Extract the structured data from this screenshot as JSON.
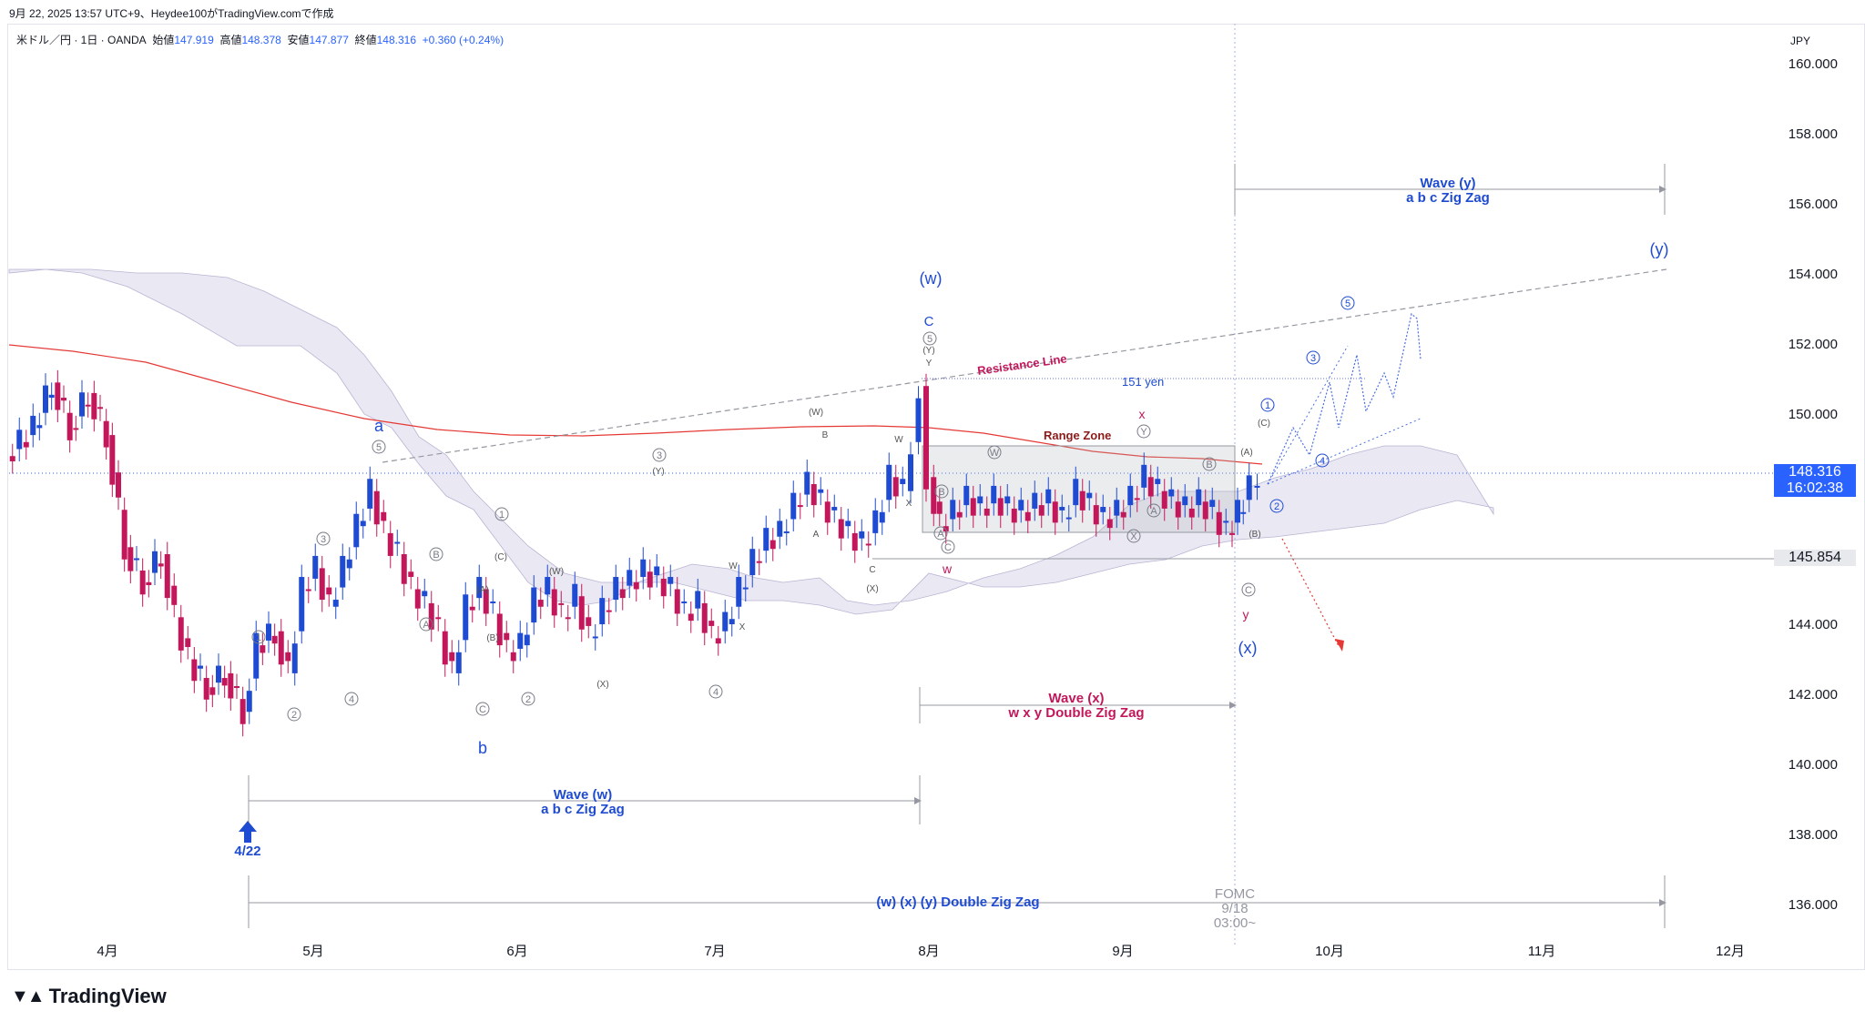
{
  "header": {
    "timestamp": "9月 22, 2025 13:57 UTC+9、Heydee100がTradingView.comで作成"
  },
  "legend": {
    "symbol": "米ドル／円 · 1日 · OANDA",
    "open_label": "始値",
    "open": "147.919",
    "high_label": "高値",
    "high": "148.378",
    "low_label": "安値",
    "low": "147.877",
    "close_label": "終値",
    "close": "148.316",
    "change": "+0.360 (+0.24%)"
  },
  "currency": "JPY",
  "colors": {
    "up": "#1e4bd2",
    "down": "#c2185b",
    "accent": "#2962ff"
  },
  "price_axis": [
    "160.000",
    "158.000",
    "156.000",
    "154.000",
    "152.000",
    "150.000",
    "148.000",
    "146.000",
    "144.000",
    "142.000",
    "140.000",
    "138.000",
    "136.000"
  ],
  "price_tags": {
    "last": "148.316",
    "countdown": "16:02:38",
    "level": "145.854"
  },
  "time_axis": [
    "4月",
    "5月",
    "6月",
    "7月",
    "8月",
    "9月",
    "10月",
    "11月",
    "12月"
  ],
  "annotations": {
    "wave_w_title": "Wave (w)",
    "wave_w_sub": "a b c  Zig Zag",
    "wave_x_title": "Wave (x)",
    "wave_x_sub": "w x y Double Zig Zag",
    "wave_y_title": "Wave (y)",
    "wave_y_sub": "a b c  Zig Zag",
    "overall": "(w) (x) (y) Double Zig Zag",
    "date_422": "4/22",
    "fomc": "FOMC",
    "fomc_date": "9/18",
    "fomc_time": "03:00~",
    "resistance": "Resistance Line",
    "range_zone": "Range Zone",
    "yen151": "151 yen",
    "label_w": "(w)",
    "label_x": "(x)",
    "label_y": "(y)",
    "label_a": "a",
    "label_b": "b",
    "label_C": "C",
    "label_w_small": "w",
    "label_x_small": "x",
    "label_y_small": "y"
  },
  "footer": {
    "brand": "TradingView"
  }
}
